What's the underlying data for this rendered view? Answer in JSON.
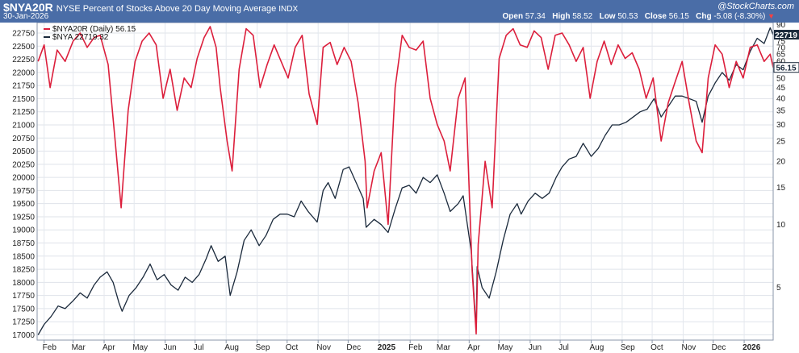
{
  "header": {
    "symbol": "$NYA20R",
    "description": "NYSE Percent of Stocks Above 20 Day Moving Average",
    "exchange": "INDX",
    "date": "30-Jan-2026",
    "brand": "@StockCharts.com",
    "open_label": "Open",
    "open": "57.34",
    "high_label": "High",
    "high": "58.52",
    "low_label": "Low",
    "low": "50.53",
    "close_label": "Close",
    "close": "56.15",
    "chg_label": "Chg",
    "chg": "-5.08 (-8.30%)"
  },
  "colors": {
    "header_bg": "#4a6da7",
    "red": "#dc1f3c",
    "dark": "#1b2a3c",
    "grid": "#d9dee5"
  },
  "legend": {
    "series1": "$NYA20R (Daily) 56.15",
    "series2": "$NYA 22719.32"
  },
  "badges": {
    "left": "22719",
    "right": "56.15"
  },
  "chart_data": {
    "type": "line",
    "left_axis": {
      "ticks": [
        17000,
        17250,
        17500,
        17750,
        18000,
        18250,
        18500,
        18750,
        19000,
        19250,
        19500,
        19750,
        20000,
        20250,
        20500,
        20750,
        21000,
        21250,
        21500,
        21750,
        22000,
        22250,
        22500,
        22750
      ],
      "ylim": [
        16900,
        22950
      ],
      "series": "$NYA"
    },
    "right_axis": {
      "ticks": [
        5,
        10,
        15,
        20,
        25,
        30,
        35,
        40,
        45,
        50,
        55,
        60,
        65,
        70,
        75,
        80,
        90
      ],
      "scale": "log",
      "ylim": [
        2.8,
        92
      ],
      "series": "$NYA20R"
    },
    "x_ticks": [
      "Feb",
      "Mar",
      "Apr",
      "May",
      "Jun",
      "Jul",
      "Aug",
      "Sep",
      "Oct",
      "Nov",
      "Dec",
      "2025",
      "Feb",
      "Mar",
      "Apr",
      "May",
      "Jun",
      "Jul",
      "Aug",
      "Sep",
      "Oct",
      "Nov",
      "Dec",
      "2026"
    ],
    "x_range": [
      "2024-01-25",
      "2026-01-30"
    ],
    "series": [
      {
        "name": "$NYA20R (Daily)",
        "color": "#dc1f3c",
        "points": [
          [
            "2024-01-26",
            60
          ],
          [
            "2024-02-01",
            72
          ],
          [
            "2024-02-07",
            45
          ],
          [
            "2024-02-14",
            68
          ],
          [
            "2024-02-22",
            60
          ],
          [
            "2024-03-01",
            75
          ],
          [
            "2024-03-08",
            82
          ],
          [
            "2024-03-15",
            70
          ],
          [
            "2024-03-22",
            78
          ],
          [
            "2024-03-28",
            80
          ],
          [
            "2024-04-05",
            58
          ],
          [
            "2024-04-12",
            25
          ],
          [
            "2024-04-18",
            12
          ],
          [
            "2024-04-25",
            35
          ],
          [
            "2024-05-02",
            60
          ],
          [
            "2024-05-09",
            75
          ],
          [
            "2024-05-16",
            82
          ],
          [
            "2024-05-23",
            72
          ],
          [
            "2024-05-30",
            40
          ],
          [
            "2024-06-06",
            55
          ],
          [
            "2024-06-13",
            35
          ],
          [
            "2024-06-20",
            50
          ],
          [
            "2024-06-27",
            45
          ],
          [
            "2024-07-03",
            62
          ],
          [
            "2024-07-10",
            78
          ],
          [
            "2024-07-16",
            88
          ],
          [
            "2024-07-22",
            70
          ],
          [
            "2024-07-26",
            45
          ],
          [
            "2024-08-02",
            25
          ],
          [
            "2024-08-07",
            18
          ],
          [
            "2024-08-14",
            55
          ],
          [
            "2024-08-21",
            86
          ],
          [
            "2024-08-28",
            80
          ],
          [
            "2024-09-04",
            45
          ],
          [
            "2024-09-11",
            58
          ],
          [
            "2024-09-18",
            72
          ],
          [
            "2024-09-25",
            60
          ],
          [
            "2024-10-02",
            50
          ],
          [
            "2024-10-09",
            70
          ],
          [
            "2024-10-16",
            80
          ],
          [
            "2024-10-23",
            42
          ],
          [
            "2024-10-31",
            30
          ],
          [
            "2024-11-06",
            70
          ],
          [
            "2024-11-13",
            74
          ],
          [
            "2024-11-20",
            58
          ],
          [
            "2024-11-27",
            70
          ],
          [
            "2024-12-04",
            60
          ],
          [
            "2024-12-11",
            38
          ],
          [
            "2024-12-18",
            20
          ],
          [
            "2024-12-20",
            12
          ],
          [
            "2024-12-27",
            18
          ],
          [
            "2025-01-03",
            22
          ],
          [
            "2025-01-10",
            10
          ],
          [
            "2025-01-17",
            45
          ],
          [
            "2025-01-24",
            80
          ],
          [
            "2025-01-31",
            70
          ],
          [
            "2025-02-07",
            68
          ],
          [
            "2025-02-14",
            75
          ],
          [
            "2025-02-21",
            40
          ],
          [
            "2025-02-28",
            30
          ],
          [
            "2025-03-07",
            25
          ],
          [
            "2025-03-13",
            18
          ],
          [
            "2025-03-21",
            40
          ],
          [
            "2025-03-28",
            50
          ],
          [
            "2025-04-04",
            6
          ],
          [
            "2025-04-08",
            3
          ],
          [
            "2025-04-10",
            8
          ],
          [
            "2025-04-17",
            20
          ],
          [
            "2025-04-24",
            12
          ],
          [
            "2025-05-01",
            62
          ],
          [
            "2025-05-08",
            80
          ],
          [
            "2025-05-15",
            86
          ],
          [
            "2025-05-22",
            72
          ],
          [
            "2025-05-29",
            70
          ],
          [
            "2025-06-05",
            84
          ],
          [
            "2025-06-12",
            78
          ],
          [
            "2025-06-19",
            55
          ],
          [
            "2025-06-26",
            80
          ],
          [
            "2025-07-03",
            82
          ],
          [
            "2025-07-10",
            72
          ],
          [
            "2025-07-17",
            60
          ],
          [
            "2025-07-24",
            70
          ],
          [
            "2025-07-31",
            40
          ],
          [
            "2025-08-07",
            60
          ],
          [
            "2025-08-14",
            75
          ],
          [
            "2025-08-21",
            58
          ],
          [
            "2025-08-28",
            72
          ],
          [
            "2025-09-04",
            62
          ],
          [
            "2025-09-11",
            66
          ],
          [
            "2025-09-18",
            55
          ],
          [
            "2025-09-25",
            40
          ],
          [
            "2025-10-02",
            50
          ],
          [
            "2025-10-10",
            25
          ],
          [
            "2025-10-17",
            38
          ],
          [
            "2025-10-24",
            48
          ],
          [
            "2025-10-31",
            60
          ],
          [
            "2025-11-07",
            38
          ],
          [
            "2025-11-14",
            25
          ],
          [
            "2025-11-20",
            22
          ],
          [
            "2025-11-26",
            50
          ],
          [
            "2025-12-03",
            72
          ],
          [
            "2025-12-10",
            65
          ],
          [
            "2025-12-17",
            45
          ],
          [
            "2025-12-24",
            60
          ],
          [
            "2025-12-31",
            50
          ],
          [
            "2026-01-07",
            70
          ],
          [
            "2026-01-14",
            72
          ],
          [
            "2026-01-21",
            60
          ],
          [
            "2026-01-27",
            65
          ],
          [
            "2026-01-30",
            56.15
          ]
        ]
      },
      {
        "name": "$NYA",
        "color": "#1b2a3c",
        "points": [
          [
            "2024-01-26",
            17000
          ],
          [
            "2024-02-01",
            17200
          ],
          [
            "2024-02-08",
            17350
          ],
          [
            "2024-02-15",
            17550
          ],
          [
            "2024-02-22",
            17500
          ],
          [
            "2024-03-01",
            17650
          ],
          [
            "2024-03-08",
            17800
          ],
          [
            "2024-03-15",
            17700
          ],
          [
            "2024-03-22",
            17950
          ],
          [
            "2024-03-28",
            18100
          ],
          [
            "2024-04-04",
            18200
          ],
          [
            "2024-04-10",
            18000
          ],
          [
            "2024-04-16",
            17600
          ],
          [
            "2024-04-19",
            17450
          ],
          [
            "2024-04-26",
            17750
          ],
          [
            "2024-05-03",
            17900
          ],
          [
            "2024-05-10",
            18100
          ],
          [
            "2024-05-17",
            18350
          ],
          [
            "2024-05-24",
            18050
          ],
          [
            "2024-05-31",
            18150
          ],
          [
            "2024-06-07",
            17950
          ],
          [
            "2024-06-14",
            17850
          ],
          [
            "2024-06-21",
            18100
          ],
          [
            "2024-06-28",
            18000
          ],
          [
            "2024-07-05",
            18150
          ],
          [
            "2024-07-12",
            18450
          ],
          [
            "2024-07-17",
            18700
          ],
          [
            "2024-07-24",
            18400
          ],
          [
            "2024-07-31",
            18500
          ],
          [
            "2024-08-05",
            17750
          ],
          [
            "2024-08-12",
            18200
          ],
          [
            "2024-08-19",
            18800
          ],
          [
            "2024-08-26",
            19000
          ],
          [
            "2024-09-03",
            18700
          ],
          [
            "2024-09-10",
            18900
          ],
          [
            "2024-09-17",
            19200
          ],
          [
            "2024-09-24",
            19300
          ],
          [
            "2024-10-01",
            19300
          ],
          [
            "2024-10-08",
            19250
          ],
          [
            "2024-10-15",
            19550
          ],
          [
            "2024-10-22",
            19350
          ],
          [
            "2024-10-31",
            19150
          ],
          [
            "2024-11-06",
            19750
          ],
          [
            "2024-11-11",
            19900
          ],
          [
            "2024-11-18",
            19600
          ],
          [
            "2024-11-26",
            20150
          ],
          [
            "2024-12-02",
            20200
          ],
          [
            "2024-12-09",
            19900
          ],
          [
            "2024-12-16",
            19600
          ],
          [
            "2024-12-19",
            19050
          ],
          [
            "2024-12-27",
            19200
          ],
          [
            "2025-01-03",
            19100
          ],
          [
            "2025-01-10",
            18950
          ],
          [
            "2025-01-17",
            19400
          ],
          [
            "2025-01-24",
            19800
          ],
          [
            "2025-01-31",
            19850
          ],
          [
            "2025-02-07",
            19700
          ],
          [
            "2025-02-14",
            20000
          ],
          [
            "2025-02-21",
            19900
          ],
          [
            "2025-02-28",
            20050
          ],
          [
            "2025-03-07",
            19700
          ],
          [
            "2025-03-13",
            19350
          ],
          [
            "2025-03-21",
            19500
          ],
          [
            "2025-03-26",
            19650
          ],
          [
            "2025-04-03",
            18600
          ],
          [
            "2025-04-08",
            17100
          ],
          [
            "2025-04-09",
            18300
          ],
          [
            "2025-04-14",
            17900
          ],
          [
            "2025-04-21",
            17700
          ],
          [
            "2025-04-28",
            18200
          ],
          [
            "2025-05-05",
            18800
          ],
          [
            "2025-05-12",
            19300
          ],
          [
            "2025-05-19",
            19500
          ],
          [
            "2025-05-23",
            19300
          ],
          [
            "2025-05-30",
            19550
          ],
          [
            "2025-06-06",
            19700
          ],
          [
            "2025-06-13",
            19600
          ],
          [
            "2025-06-20",
            19700
          ],
          [
            "2025-06-27",
            20000
          ],
          [
            "2025-07-03",
            20200
          ],
          [
            "2025-07-10",
            20350
          ],
          [
            "2025-07-17",
            20400
          ],
          [
            "2025-07-24",
            20650
          ],
          [
            "2025-08-01",
            20400
          ],
          [
            "2025-08-08",
            20550
          ],
          [
            "2025-08-15",
            20800
          ],
          [
            "2025-08-22",
            21000
          ],
          [
            "2025-08-29",
            21000
          ],
          [
            "2025-09-05",
            21050
          ],
          [
            "2025-09-12",
            21150
          ],
          [
            "2025-09-19",
            21250
          ],
          [
            "2025-09-26",
            21300
          ],
          [
            "2025-10-03",
            21500
          ],
          [
            "2025-10-10",
            21150
          ],
          [
            "2025-10-17",
            21350
          ],
          [
            "2025-10-24",
            21550
          ],
          [
            "2025-10-31",
            21550
          ],
          [
            "2025-11-07",
            21500
          ],
          [
            "2025-11-14",
            21450
          ],
          [
            "2025-11-20",
            21050
          ],
          [
            "2025-11-26",
            21550
          ],
          [
            "2025-12-03",
            21800
          ],
          [
            "2025-12-10",
            22000
          ],
          [
            "2025-12-17",
            21850
          ],
          [
            "2025-12-24",
            22150
          ],
          [
            "2025-12-31",
            22050
          ],
          [
            "2026-01-07",
            22400
          ],
          [
            "2026-01-14",
            22650
          ],
          [
            "2026-01-21",
            22550
          ],
          [
            "2026-01-27",
            22850
          ],
          [
            "2026-01-30",
            22719.32
          ]
        ]
      }
    ]
  }
}
